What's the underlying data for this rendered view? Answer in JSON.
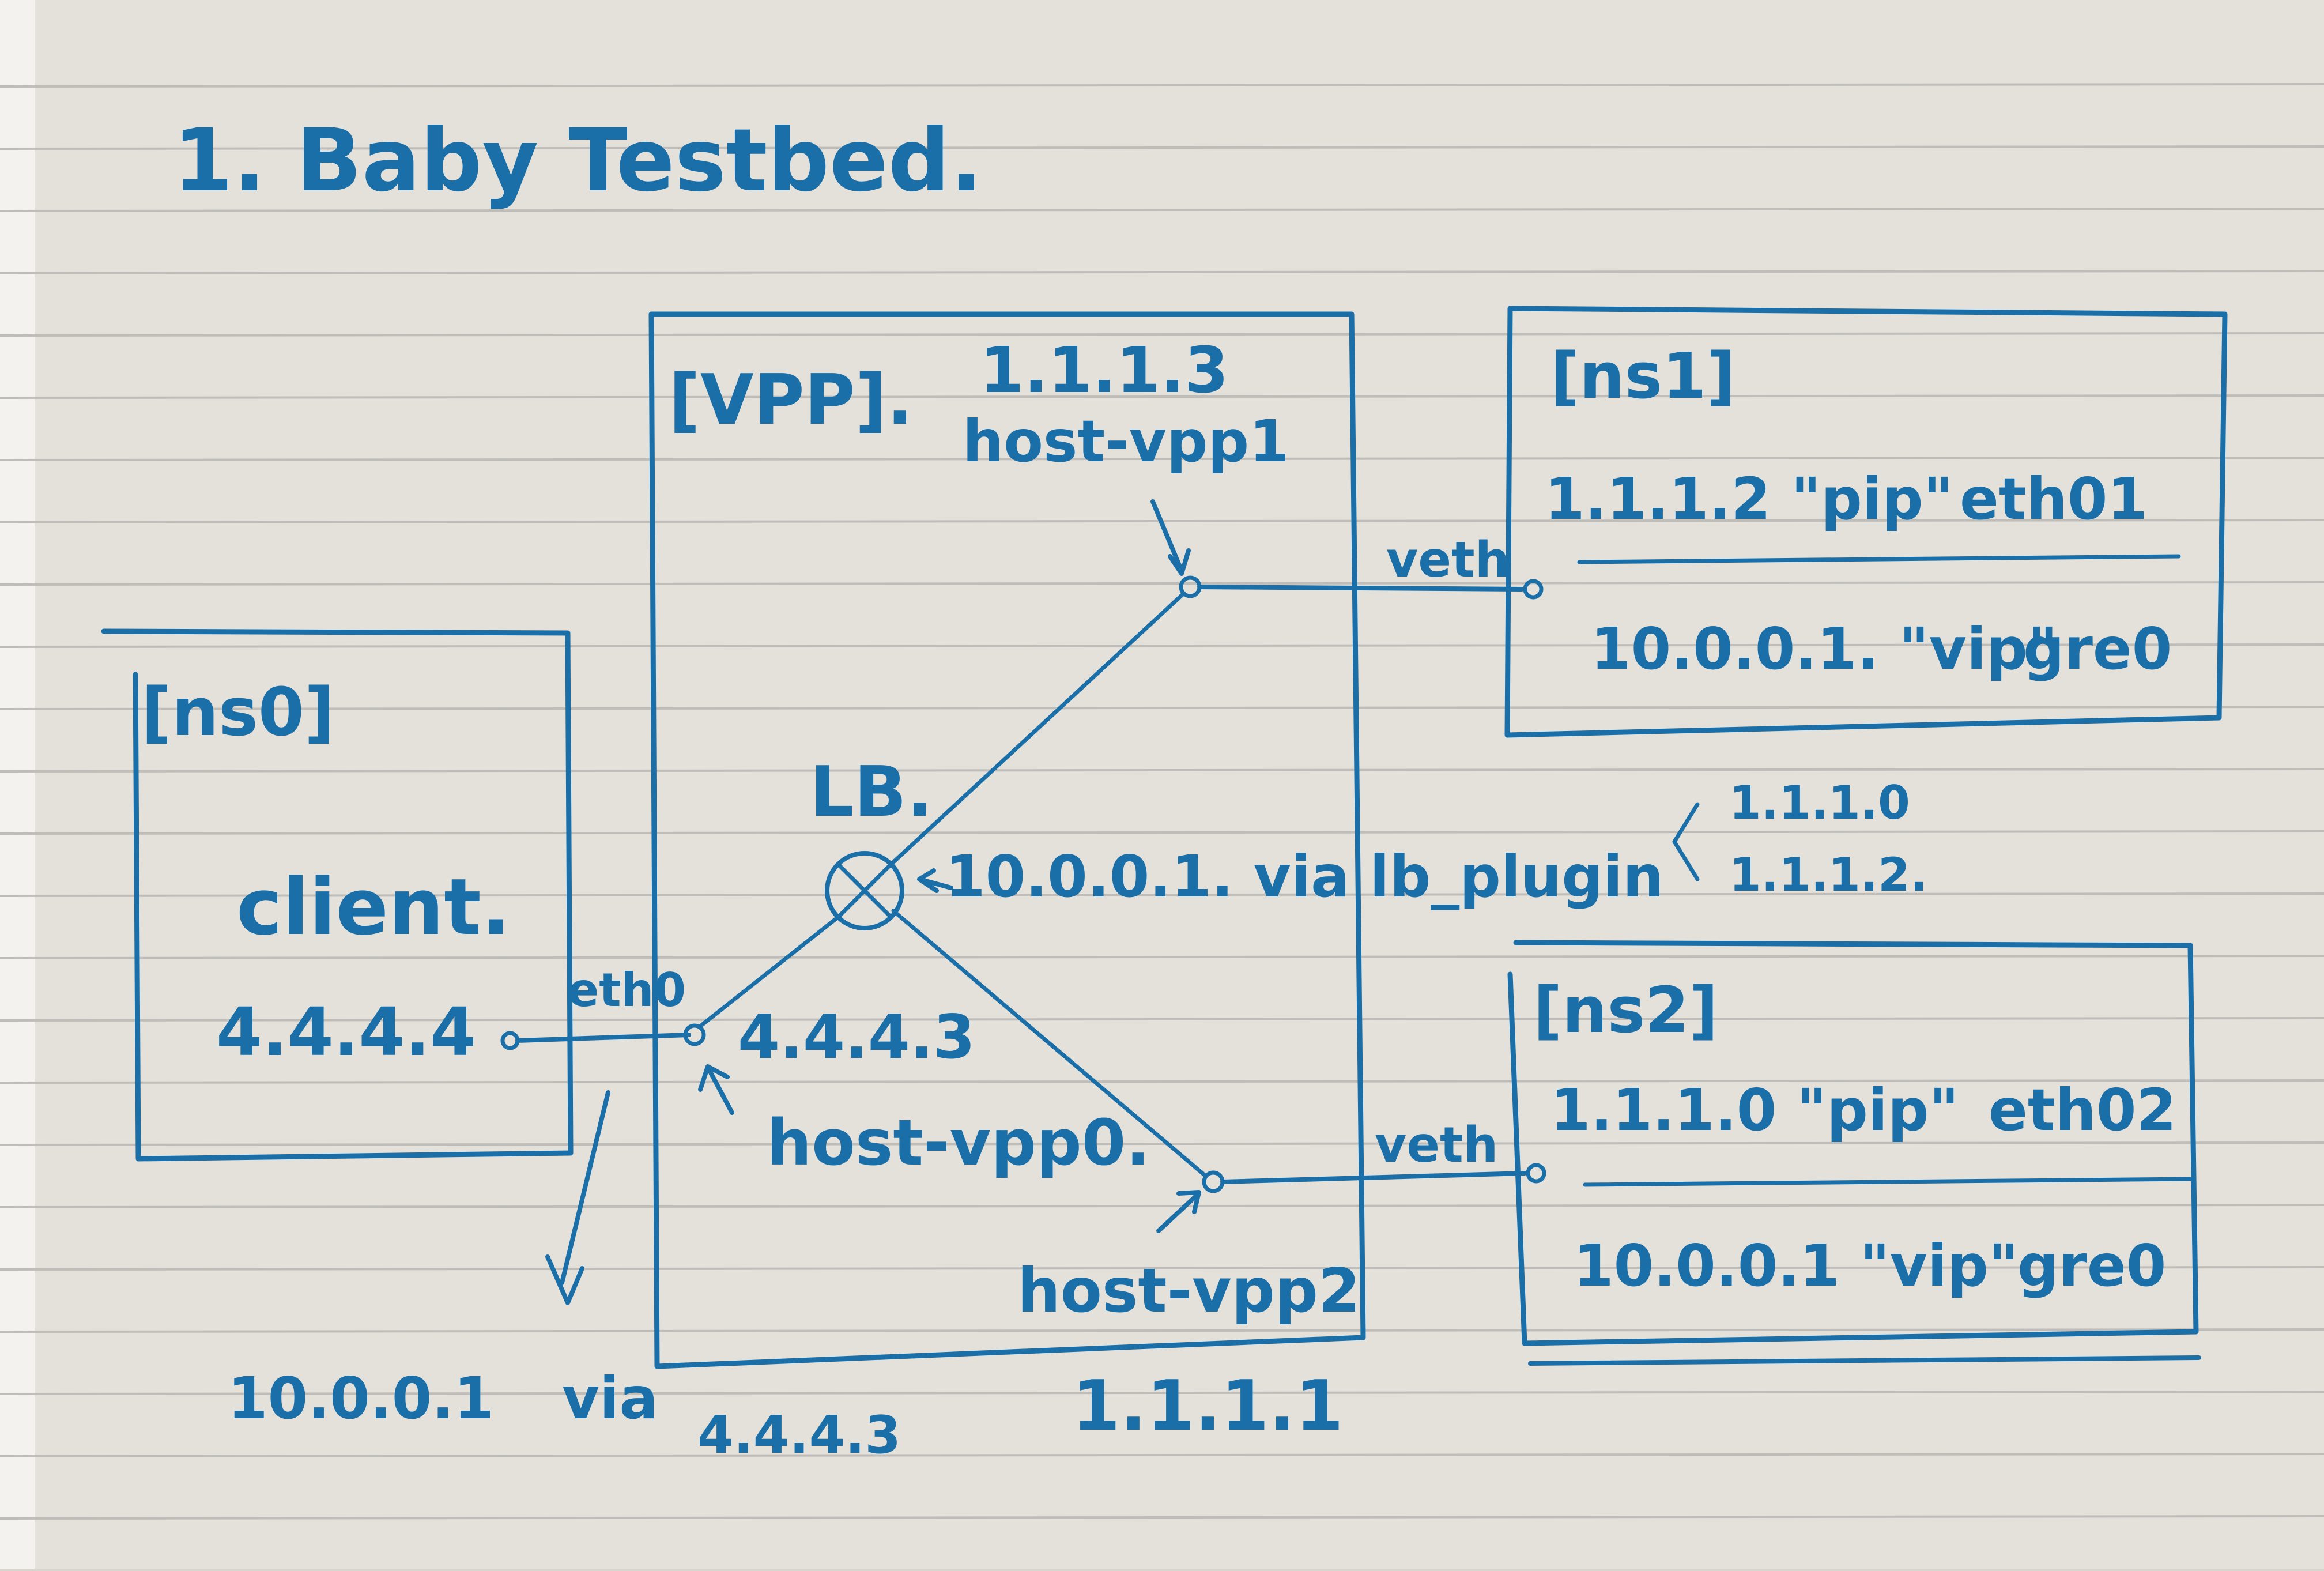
{
  "title": "1. Baby Testbed.",
  "ink_color": "#1a6fa8",
  "paper_color": "#e4e1db",
  "rule_color": "#bfbdb9",
  "vpp": {
    "label": "[VPP].",
    "lb_label": "LB.",
    "pip_ip": "1.1.1.3",
    "host_vpp1": "host-vpp1",
    "route_note": "10.0.0.1. via lb_plugin",
    "client_side_ip": "4.4.4.3",
    "host_vpp0": "host-vpp0.",
    "host_vpp2": "host-vpp2",
    "bottom_ip": "1.1.1.1"
  },
  "ns0": {
    "label": "[ns0]",
    "client": "client.",
    "ip": "4.4.4.4",
    "iface": "eth0"
  },
  "ns1": {
    "label": "[ns1]",
    "pip_line": "1.1.1.2 \"pip\"",
    "pip_iface": "eth01",
    "vip_line": "10.0.0.1. \"vip\"",
    "vip_iface": "gre0",
    "link": "veth"
  },
  "ns2": {
    "label": "[ns2]",
    "pip_line": "1.1.1.0 \"pip\"",
    "pip_iface": "eth02",
    "vip_line": "10.0.0.1 \"vip\"",
    "vip_iface": "gre0",
    "link": "veth"
  },
  "lb_targets": [
    "1.1.1.0",
    "1.1.1.2."
  ],
  "client_route": {
    "dest": "10.0.0.1",
    "via": "via",
    "gw": "4.4.4.3"
  }
}
